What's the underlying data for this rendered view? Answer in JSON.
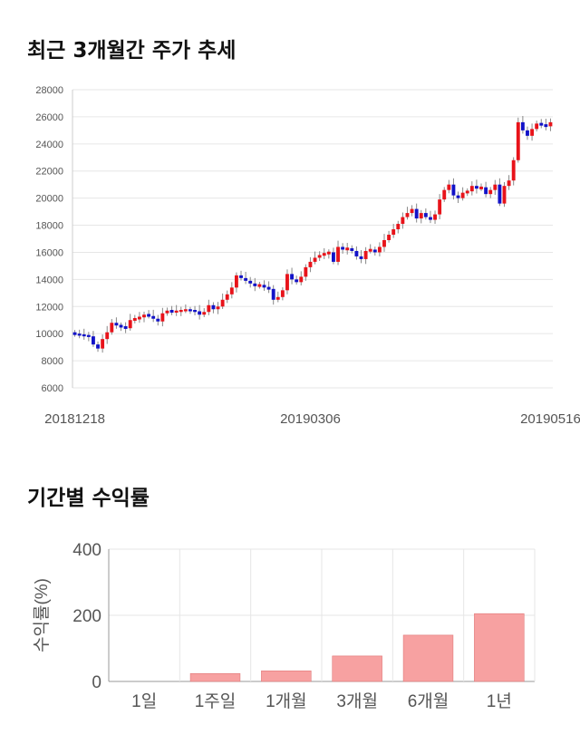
{
  "sections": {
    "price_title": "최근 3개월간 주가 추세",
    "returns_title": "기간별 수익률"
  },
  "colors": {
    "up": "#e8131a",
    "down": "#1212c8",
    "bar": "#f7a1a1",
    "bar_edge": "#e07878"
  },
  "chart_data": [
    {
      "type": "candlestick",
      "title": "최근 3개월간 주가 추세",
      "ylim": [
        6000,
        28000
      ],
      "yticks": [
        6000,
        8000,
        10000,
        12000,
        14000,
        16000,
        18000,
        20000,
        22000,
        24000,
        26000,
        28000
      ],
      "x_labels": [
        "20181218",
        "20190306",
        "20190516"
      ],
      "x_label_index": [
        0,
        51,
        103
      ],
      "grid": true,
      "closes": [
        9950,
        9900,
        9850,
        9800,
        9200,
        8900,
        9600,
        10100,
        10800,
        10600,
        10500,
        10400,
        11000,
        11100,
        11200,
        11400,
        11300,
        11100,
        10900,
        11500,
        11700,
        11600,
        11650,
        11700,
        11750,
        11700,
        11650,
        11400,
        11600,
        12100,
        11800,
        12000,
        12500,
        12900,
        13400,
        14300,
        14100,
        13900,
        13700,
        13500,
        13600,
        13400,
        13300,
        12500,
        12700,
        13200,
        14400,
        14000,
        13800,
        14200,
        14900,
        15300,
        15600,
        15800,
        15900,
        16000,
        15300,
        16400,
        16200,
        16300,
        16100,
        15700,
        15500,
        16100,
        16200,
        16000,
        16400,
        16900,
        17300,
        17700,
        18100,
        18600,
        18900,
        19200,
        18500,
        18900,
        18600,
        18400,
        18800,
        19900,
        20600,
        21000,
        20200,
        20000,
        20400,
        20500,
        20900,
        20700,
        20800,
        20300,
        20600,
        21000,
        19600,
        20900,
        21300,
        22800,
        25600,
        25000,
        24600,
        25100,
        25500,
        25400,
        25300,
        25600
      ]
    },
    {
      "type": "bar",
      "title": "기간별 수익률",
      "ylabel": "수익률(%)",
      "categories": [
        "1일",
        "1주일",
        "1개월",
        "3개월",
        "6개월",
        "1년"
      ],
      "values": [
        0,
        24,
        32,
        77,
        140,
        205
      ],
      "ylim": [
        0,
        400
      ],
      "yticks": [
        0,
        200,
        400
      ],
      "grid": true
    }
  ]
}
